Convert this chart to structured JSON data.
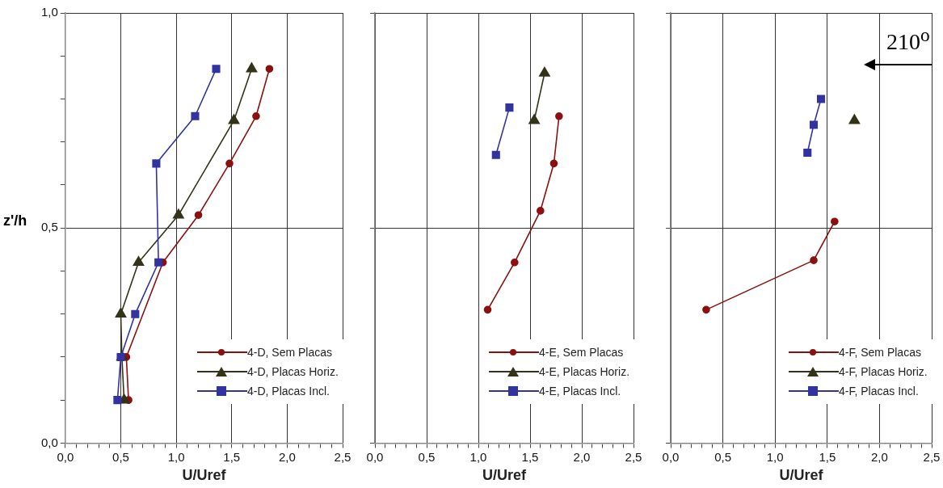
{
  "chart_data": [
    {
      "type": "line",
      "xlabel": "U/Uref",
      "ylabel": "z'/h",
      "xlim": [
        0,
        2.5
      ],
      "ylim": [
        0,
        1
      ],
      "xticks": [
        {
          "value": 0,
          "label": "0,0"
        },
        {
          "value": 0.1,
          "label": null
        },
        {
          "value": 0.2,
          "label": null
        },
        {
          "value": 0.3,
          "label": null
        },
        {
          "value": 0.4,
          "label": null
        },
        {
          "value": 0.5,
          "label": "0,5"
        },
        {
          "value": 0.6,
          "label": null
        },
        {
          "value": 0.7,
          "label": null
        },
        {
          "value": 0.8,
          "label": null
        },
        {
          "value": 0.9,
          "label": null
        },
        {
          "value": 1,
          "label": "1,0"
        },
        {
          "value": 1.1,
          "label": null
        },
        {
          "value": 1.2,
          "label": null
        },
        {
          "value": 1.3,
          "label": null
        },
        {
          "value": 1.4,
          "label": null
        },
        {
          "value": 1.5,
          "label": "1,5"
        },
        {
          "value": 1.6,
          "label": null
        },
        {
          "value": 1.7,
          "label": null
        },
        {
          "value": 1.8,
          "label": null
        },
        {
          "value": 1.9,
          "label": null
        },
        {
          "value": 2,
          "label": "2,0"
        },
        {
          "value": 2.1,
          "label": null
        },
        {
          "value": 2.2,
          "label": null
        },
        {
          "value": 2.3,
          "label": null
        },
        {
          "value": 2.4,
          "label": null
        },
        {
          "value": 2.5,
          "label": "2,5"
        }
      ],
      "yticks": [
        {
          "value": 0,
          "label": "0,0"
        },
        {
          "value": 0.1,
          "label": null
        },
        {
          "value": 0.2,
          "label": null
        },
        {
          "value": 0.3,
          "label": null
        },
        {
          "value": 0.4,
          "label": null
        },
        {
          "value": 0.5,
          "label": "0,5"
        },
        {
          "value": 0.6,
          "label": null
        },
        {
          "value": 0.7,
          "label": null
        },
        {
          "value": 0.8,
          "label": null
        },
        {
          "value": 0.9,
          "label": null
        },
        {
          "value": 1,
          "label": "1,0"
        }
      ],
      "grid": true,
      "legend": "bottom right",
      "series": [
        {
          "name": "4-D, Sem Placas",
          "color": "#8b1010",
          "marker": "circle",
          "x": [
            0.57,
            0.55,
            0.88,
            1.2,
            1.48,
            1.72,
            1.84
          ],
          "values": [
            0.1,
            0.2,
            0.42,
            0.53,
            0.65,
            0.76,
            0.87
          ]
        },
        {
          "name": "4-D, Placas Horiz.",
          "color": "#33331a",
          "marker": "triangle",
          "x": [
            0.53,
            0.51,
            0.5,
            0.66,
            1.02,
            1.52,
            1.68
          ],
          "values": [
            0.1,
            0.2,
            0.3,
            0.42,
            0.53,
            0.75,
            0.87
          ]
        },
        {
          "name": "4-D, Placas Incl.",
          "color": "#3333a0",
          "marker": "square",
          "x": [
            0.47,
            0.5,
            0.63,
            0.84,
            0.82,
            1.17,
            1.36
          ],
          "values": [
            0.1,
            0.2,
            0.3,
            0.42,
            0.65,
            0.76,
            0.87
          ]
        }
      ]
    },
    {
      "type": "line",
      "xlabel": "U/Uref",
      "xlim": [
        0,
        2.5
      ],
      "ylim": [
        0,
        1
      ],
      "tick_labels": "x",
      "xticks": [
        {
          "value": 0,
          "label": "0,0"
        },
        {
          "value": 0.1,
          "label": null
        },
        {
          "value": 0.2,
          "label": null
        },
        {
          "value": 0.3,
          "label": null
        },
        {
          "value": 0.4,
          "label": null
        },
        {
          "value": 0.5,
          "label": "0,5"
        },
        {
          "value": 0.6,
          "label": null
        },
        {
          "value": 0.7,
          "label": null
        },
        {
          "value": 0.8,
          "label": null
        },
        {
          "value": 0.9,
          "label": null
        },
        {
          "value": 1,
          "label": "1,0"
        },
        {
          "value": 1.1,
          "label": null
        },
        {
          "value": 1.2,
          "label": null
        },
        {
          "value": 1.3,
          "label": null
        },
        {
          "value": 1.4,
          "label": null
        },
        {
          "value": 1.5,
          "label": "1,5"
        },
        {
          "value": 1.6,
          "label": null
        },
        {
          "value": 1.7,
          "label": null
        },
        {
          "value": 1.8,
          "label": null
        },
        {
          "value": 1.9,
          "label": null
        },
        {
          "value": 2,
          "label": "2,0"
        },
        {
          "value": 2.1,
          "label": null
        },
        {
          "value": 2.2,
          "label": null
        },
        {
          "value": 2.3,
          "label": null
        },
        {
          "value": 2.4,
          "label": null
        },
        {
          "value": 2.5,
          "label": "2,5"
        }
      ],
      "yticks": [
        0,
        0.5,
        1
      ],
      "grid": true,
      "legend": "bottom right",
      "series": [
        {
          "name": "4-E, Sem Placas",
          "color": "#8b1010",
          "marker": "circle",
          "x": [
            1.09,
            1.35,
            1.6,
            1.73,
            1.78
          ],
          "values": [
            0.31,
            0.42,
            0.54,
            0.65,
            0.76
          ]
        },
        {
          "name": "4-E, Placas Horiz.",
          "color": "#33331a",
          "marker": "triangle",
          "x": [
            1.54,
            1.64
          ],
          "values": [
            0.75,
            0.86
          ]
        },
        {
          "name": "4-E, Placas Incl.",
          "color": "#3333a0",
          "marker": "square",
          "x": [
            1.17,
            1.3
          ],
          "values": [
            0.67,
            0.78
          ]
        }
      ]
    },
    {
      "type": "line",
      "xlabel": "U/Uref",
      "xlim": [
        0,
        2.5
      ],
      "ylim": [
        0,
        1
      ],
      "tick_labels": "x",
      "xticks": [
        {
          "value": 0,
          "label": "0,0"
        },
        {
          "value": 0.1,
          "label": null
        },
        {
          "value": 0.2,
          "label": null
        },
        {
          "value": 0.3,
          "label": null
        },
        {
          "value": 0.4,
          "label": null
        },
        {
          "value": 0.5,
          "label": "0,5"
        },
        {
          "value": 0.6,
          "label": null
        },
        {
          "value": 0.7,
          "label": null
        },
        {
          "value": 0.8,
          "label": null
        },
        {
          "value": 0.9,
          "label": null
        },
        {
          "value": 1,
          "label": "1,0"
        },
        {
          "value": 1.1,
          "label": null
        },
        {
          "value": 1.2,
          "label": null
        },
        {
          "value": 1.3,
          "label": null
        },
        {
          "value": 1.4,
          "label": null
        },
        {
          "value": 1.5,
          "label": "1,5"
        },
        {
          "value": 1.6,
          "label": null
        },
        {
          "value": 1.7,
          "label": null
        },
        {
          "value": 1.8,
          "label": null
        },
        {
          "value": 1.9,
          "label": null
        },
        {
          "value": 2,
          "label": "2,0"
        },
        {
          "value": 2.1,
          "label": null
        },
        {
          "value": 2.2,
          "label": null
        },
        {
          "value": 2.3,
          "label": null
        },
        {
          "value": 2.4,
          "label": null
        },
        {
          "value": 2.5,
          "label": "2,5"
        }
      ],
      "yticks": [
        0,
        0.5,
        1
      ],
      "grid": true,
      "legend": "bottom right",
      "annotations": [
        "210$^{o}$"
      ],
      "series": [
        {
          "name": "4-F, Sem Placas",
          "color": "#8b1010",
          "marker": "circle",
          "x": [
            0.34,
            1.37,
            1.57
          ],
          "values": [
            0.31,
            0.425,
            0.515
          ]
        },
        {
          "name": "4-F, Placas Horiz.",
          "color": "#33331a",
          "marker": "triangle",
          "x": [
            1.76
          ],
          "values": [
            0.75
          ]
        },
        {
          "name": "4-F, Placas Incl.",
          "color": "#3333a0",
          "marker": "square",
          "x": [
            1.31,
            1.37,
            1.44
          ],
          "values": [
            0.675,
            0.74,
            0.8
          ]
        }
      ]
    }
  ]
}
